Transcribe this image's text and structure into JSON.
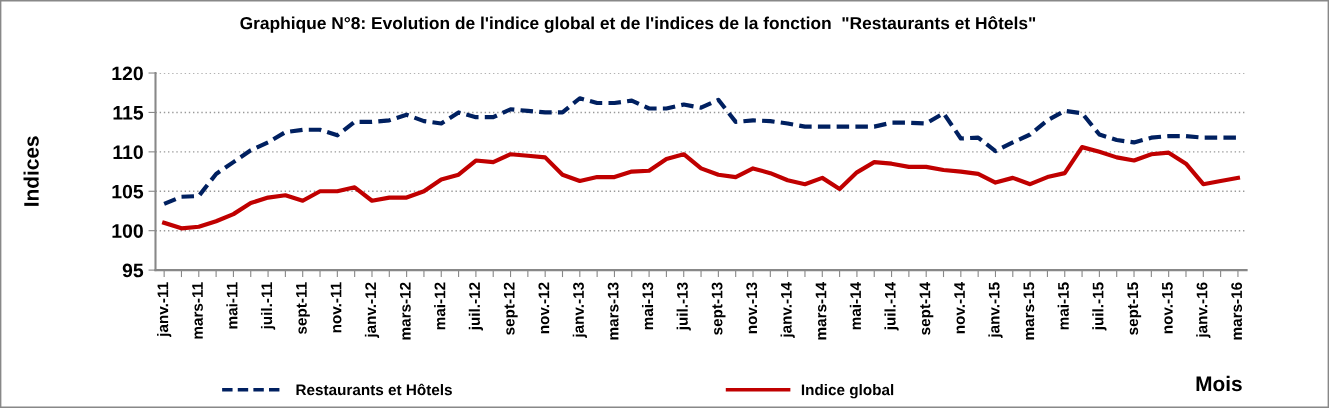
{
  "chart_data": {
    "type": "line",
    "title": "Graphique N°8: Evolution de l'indice global et de l'indices de la fonction  \"Restaurants et Hôtels\"",
    "xlabel": "Mois",
    "ylabel": "Indices",
    "categories": [
      "janv.-11",
      null,
      "mars-11",
      null,
      "mai-11",
      null,
      "juil.-11",
      null,
      "sept-11",
      null,
      "nov.-11",
      null,
      "janv.-12",
      null,
      "mars-12",
      null,
      "mai-12",
      null,
      "juil.-12",
      null,
      "sept-12",
      null,
      "nov.-12",
      null,
      "janv.-13",
      null,
      "mars-13",
      null,
      "mai-13",
      null,
      "juil.-13",
      null,
      "sept-13",
      null,
      "nov.-13",
      null,
      "janv.-14",
      null,
      "mars-14",
      null,
      "mai-14",
      null,
      "juil.-14",
      null,
      "sept-14",
      null,
      "nov.-14",
      null,
      "janv.-15",
      null,
      "mars-15",
      null,
      "mai-15",
      null,
      "juil.-15",
      null,
      "sept-15",
      null,
      "nov.-15",
      null,
      "janv.-16",
      null,
      "mars-16"
    ],
    "series": [
      {
        "name": "Restaurants et Hôtels",
        "color": "#002060",
        "line_style": "dashed",
        "values": [
          103.4,
          104.3,
          104.4,
          107.2,
          108.7,
          110.2,
          111.2,
          112.5,
          112.8,
          112.8,
          112.1,
          113.8,
          113.8,
          114.0,
          114.7,
          113.9,
          113.6,
          115.0,
          114.4,
          114.4,
          115.4,
          115.2,
          115.0,
          115.0,
          116.8,
          116.2,
          116.2,
          116.5,
          115.5,
          115.5,
          116.0,
          115.6,
          116.6,
          113.8,
          114.0,
          113.9,
          113.6,
          113.2,
          113.2,
          113.2,
          113.2,
          113.2,
          113.7,
          113.7,
          113.6,
          114.9,
          111.7,
          111.8,
          110.1,
          111.2,
          112.2,
          114.0,
          115.2,
          114.9,
          112.2,
          111.5,
          111.2,
          111.8,
          112.0,
          112.0,
          111.8,
          111.8,
          111.8
        ]
      },
      {
        "name": "Indice global",
        "color": "#c00000",
        "line_style": "solid",
        "values": [
          101.0,
          100.3,
          100.5,
          101.2,
          102.1,
          103.5,
          104.2,
          104.5,
          103.8,
          105.0,
          105.0,
          105.5,
          103.8,
          104.2,
          104.2,
          105.0,
          106.5,
          107.1,
          108.9,
          108.7,
          109.7,
          109.5,
          109.3,
          107.1,
          106.3,
          106.8,
          106.8,
          107.5,
          107.6,
          109.1,
          109.7,
          107.9,
          107.1,
          106.8,
          107.9,
          107.3,
          106.4,
          105.9,
          106.7,
          105.3,
          107.4,
          108.7,
          108.5,
          108.1,
          108.1,
          107.7,
          107.5,
          107.2,
          106.1,
          106.7,
          105.9,
          106.8,
          107.3,
          110.6,
          110.0,
          109.3,
          108.9,
          109.7,
          109.9,
          108.5,
          105.9,
          106.3,
          106.7
        ]
      }
    ],
    "ylim": [
      95,
      120
    ],
    "yticks": [
      95,
      100,
      105,
      110,
      115,
      120
    ],
    "grid": "y",
    "legend": "bottom",
    "marker": "none"
  }
}
